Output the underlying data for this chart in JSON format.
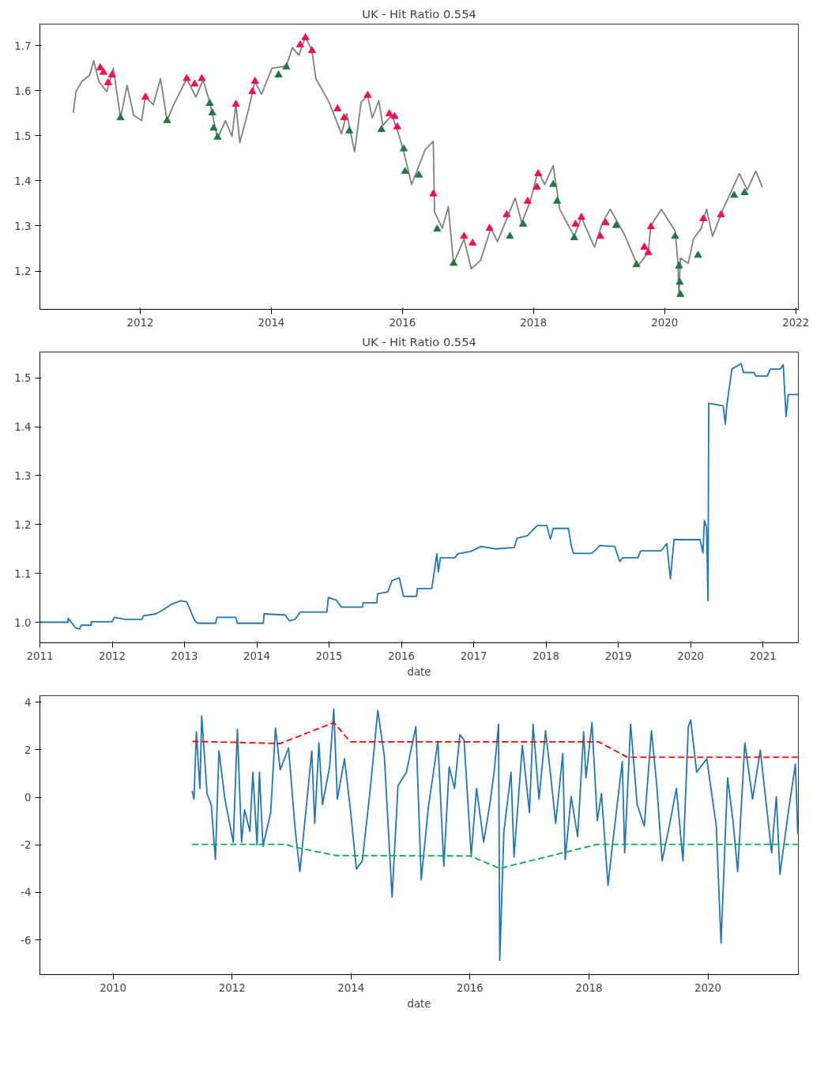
{
  "chart_data": [
    {
      "type": "line",
      "title": "UK - Hit Ratio 0.554",
      "xlim": [
        2010.47,
        2022.04
      ],
      "ylim": [
        1.115,
        1.748
      ],
      "xticks": [
        2012,
        2014,
        2016,
        2018,
        2020,
        2022
      ],
      "yticks": [
        {
          "value": 1.2,
          "label": "1.2"
        },
        {
          "value": 1.3,
          "label": "1.3"
        },
        {
          "value": 1.4,
          "label": "1.4"
        },
        {
          "value": 1.5,
          "label": "1.5"
        },
        {
          "value": 1.6,
          "label": "1.6"
        },
        {
          "value": 1.7,
          "label": "1.7"
        }
      ],
      "series": [
        {
          "color": "#808080",
          "x": [
            2010.98,
            2011.02,
            2011.11,
            2011.23,
            2011.29,
            2011.37,
            2011.49,
            2011.59,
            2011.7,
            2011.8,
            2011.9,
            2012.02,
            2012.08,
            2012.2,
            2012.31,
            2012.41,
            2012.51,
            2012.71,
            2012.85,
            2012.96,
            2013.06,
            2013.18,
            2013.3,
            2013.4,
            2013.46,
            2013.52,
            2013.65,
            2013.75,
            2013.85,
            2014.01,
            2014.23,
            2014.32,
            2014.42,
            2014.52,
            2014.62,
            2014.68,
            2014.88,
            2015.07,
            2015.15,
            2015.27,
            2015.37,
            2015.47,
            2015.54,
            2015.64,
            2015.7,
            2015.84,
            2015.94,
            2016.02,
            2016.14,
            2016.35,
            2016.47,
            2016.48,
            2016.49,
            2016.61,
            2016.7,
            2016.78,
            2016.94,
            2017.05,
            2017.19,
            2017.35,
            2017.45,
            2017.6,
            2017.72,
            2017.82,
            2017.95,
            2018.07,
            2018.17,
            2018.3,
            2018.4,
            2018.62,
            2018.73,
            2018.93,
            2019.05,
            2019.17,
            2019.38,
            2019.59,
            2019.75,
            2019.79,
            2019.95,
            2020.16,
            2020.2,
            2020.22,
            2020.24,
            2020.36,
            2020.44,
            2020.56,
            2020.64,
            2020.73,
            2020.89,
            2021.14,
            2021.26,
            2021.39,
            2021.49
          ],
          "values": [
            1.551,
            1.598,
            1.621,
            1.635,
            1.667,
            1.621,
            1.598,
            1.65,
            1.54,
            1.612,
            1.546,
            1.534,
            1.586,
            1.569,
            1.627,
            1.534,
            1.569,
            1.627,
            1.586,
            1.624,
            1.575,
            1.494,
            1.534,
            1.499,
            1.569,
            1.485,
            1.557,
            1.621,
            1.592,
            1.65,
            1.655,
            1.696,
            1.679,
            1.719,
            1.69,
            1.627,
            1.575,
            1.505,
            1.549,
            1.465,
            1.575,
            1.589,
            1.54,
            1.578,
            1.523,
            1.546,
            1.505,
            1.465,
            1.392,
            1.47,
            1.488,
            1.416,
            1.331,
            1.295,
            1.343,
            1.217,
            1.271,
            1.205,
            1.223,
            1.295,
            1.265,
            1.319,
            1.362,
            1.307,
            1.355,
            1.422,
            1.392,
            1.434,
            1.337,
            1.277,
            1.319,
            1.253,
            1.307,
            1.337,
            1.283,
            1.211,
            1.241,
            1.301,
            1.337,
            1.289,
            1.223,
            1.145,
            1.229,
            1.217,
            1.271,
            1.295,
            1.337,
            1.277,
            1.337,
            1.416,
            1.38,
            1.422,
            1.386
          ]
        },
        {
          "type": "scatter",
          "marker": "triangle",
          "color": "#ff0a50",
          "x": [
            2011.39,
            2011.44,
            2011.51,
            2011.57,
            2012.08,
            2012.71,
            2012.83,
            2012.94,
            2013.46,
            2013.71,
            2013.75,
            2014.44,
            2014.52,
            2014.62,
            2015.01,
            2015.11,
            2015.47,
            2015.8,
            2015.88,
            2015.92,
            2016.47,
            2016.94,
            2017.07,
            2017.33,
            2017.59,
            2017.91,
            2018.05,
            2018.07,
            2018.64,
            2018.73,
            2019.02,
            2019.1,
            2019.69,
            2019.75,
            2019.79,
            2020.59,
            2020.86
          ],
          "values": [
            1.651,
            1.641,
            1.618,
            1.635,
            1.586,
            1.627,
            1.615,
            1.627,
            1.57,
            1.598,
            1.621,
            1.702,
            1.718,
            1.689,
            1.56,
            1.54,
            1.59,
            1.549,
            1.543,
            1.52,
            1.371,
            1.277,
            1.262,
            1.295,
            1.325,
            1.355,
            1.386,
            1.416,
            1.304,
            1.319,
            1.277,
            1.307,
            1.253,
            1.241,
            1.298,
            1.316,
            1.325
          ]
        },
        {
          "type": "scatter",
          "marker": "triangle",
          "color": "#1e7b3c",
          "x": [
            2011.7,
            2012.41,
            2013.06,
            2013.1,
            2013.12,
            2013.18,
            2014.11,
            2014.23,
            2015.19,
            2015.68,
            2016.02,
            2016.04,
            2016.25,
            2016.53,
            2016.78,
            2017.64,
            2017.84,
            2018.3,
            2018.36,
            2018.62,
            2019.26,
            2019.57,
            2020.16,
            2020.22,
            2020.23,
            2020.24,
            2020.51,
            2021.06,
            2021.22
          ],
          "values": [
            1.54,
            1.534,
            1.572,
            1.551,
            1.517,
            1.497,
            1.635,
            1.653,
            1.511,
            1.514,
            1.471,
            1.421,
            1.413,
            1.293,
            1.217,
            1.277,
            1.304,
            1.392,
            1.355,
            1.274,
            1.301,
            1.214,
            1.277,
            1.211,
            1.175,
            1.148,
            1.235,
            1.368,
            1.374
          ]
        }
      ]
    },
    {
      "type": "line",
      "title": "UK - Hit Ratio 0.554",
      "xlabel": "date",
      "xlim": [
        2011.0,
        2021.49
      ],
      "ylim": [
        0.958,
        1.553
      ],
      "xticks": [
        2011,
        2012,
        2013,
        2014,
        2015,
        2016,
        2017,
        2018,
        2019,
        2020,
        2021
      ],
      "yticks": [
        {
          "value": 1.0,
          "label": "1.0"
        },
        {
          "value": 1.1,
          "label": "1.1"
        },
        {
          "value": 1.2,
          "label": "1.2"
        },
        {
          "value": 1.3,
          "label": "1.3"
        },
        {
          "value": 1.4,
          "label": "1.4"
        },
        {
          "value": 1.5,
          "label": "1.5"
        }
      ],
      "series": [
        {
          "color": "#1f77b4",
          "x": [
            2011.0,
            2011.39,
            2011.39,
            2011.5,
            2011.55,
            2011.57,
            2011.71,
            2011.71,
            2012.0,
            2012.03,
            2012.18,
            2012.41,
            2012.43,
            2012.6,
            2012.71,
            2012.82,
            2012.95,
            2013.03,
            2013.14,
            2013.18,
            2013.43,
            2013.45,
            2013.71,
            2013.73,
            2014.09,
            2014.1,
            2014.39,
            2014.45,
            2014.53,
            2014.6,
            2014.97,
            2014.99,
            2015.1,
            2015.17,
            2015.46,
            2015.47,
            2015.66,
            2015.67,
            2015.81,
            2015.87,
            2015.97,
            2016.03,
            2016.21,
            2016.22,
            2016.42,
            2016.46,
            2016.49,
            2016.51,
            2016.54,
            2016.74,
            2016.78,
            2016.96,
            2017.1,
            2017.31,
            2017.56,
            2017.6,
            2017.74,
            2017.81,
            2017.88,
            2018.01,
            2018.06,
            2018.1,
            2018.31,
            2018.35,
            2018.38,
            2018.63,
            2018.7,
            2018.74,
            2018.95,
            2019.02,
            2019.06,
            2019.27,
            2019.31,
            2019.59,
            2019.67,
            2019.72,
            2019.77,
            2020.13,
            2020.17,
            2020.19,
            2020.22,
            2020.24,
            2020.25,
            2020.45,
            2020.48,
            2020.5,
            2020.57,
            2020.7,
            2020.73,
            2020.88,
            2020.9,
            2021.06,
            2021.1,
            2021.24,
            2021.28,
            2021.32,
            2021.35,
            2021.49
          ],
          "values": [
            1.0,
            1.0,
            1.008,
            0.988,
            0.986,
            0.994,
            0.994,
            1.001,
            1.001,
            1.01,
            1.006,
            1.006,
            1.013,
            1.017,
            1.026,
            1.037,
            1.044,
            1.042,
            1.004,
            0.998,
            0.998,
            1.01,
            1.01,
            0.998,
            0.998,
            1.017,
            1.015,
            1.003,
            1.006,
            1.021,
            1.021,
            1.051,
            1.045,
            1.031,
            1.031,
            1.04,
            1.04,
            1.058,
            1.062,
            1.085,
            1.091,
            1.053,
            1.053,
            1.069,
            1.069,
            1.109,
            1.14,
            1.103,
            1.132,
            1.132,
            1.14,
            1.145,
            1.155,
            1.15,
            1.153,
            1.172,
            1.177,
            1.188,
            1.198,
            1.198,
            1.17,
            1.192,
            1.192,
            1.156,
            1.141,
            1.141,
            1.15,
            1.157,
            1.155,
            1.124,
            1.132,
            1.132,
            1.146,
            1.146,
            1.161,
            1.089,
            1.169,
            1.169,
            1.142,
            1.208,
            1.194,
            1.044,
            1.448,
            1.443,
            1.405,
            1.443,
            1.518,
            1.529,
            1.511,
            1.511,
            1.504,
            1.504,
            1.518,
            1.518,
            1.527,
            1.421,
            1.466,
            1.466
          ]
        }
      ]
    },
    {
      "type": "line",
      "xlabel": "date",
      "xlim": [
        2008.77,
        2021.52
      ],
      "ylim": [
        -7.46,
        4.27
      ],
      "xticks": [
        2010,
        2012,
        2014,
        2016,
        2018,
        2020
      ],
      "yticks": [
        -6,
        -4,
        -2,
        0,
        2,
        4
      ],
      "series": [
        {
          "color": "#1f77b4",
          "x": [
            2011.33,
            2011.36,
            2011.4,
            2011.43,
            2011.46,
            2011.49,
            2011.54,
            2011.58,
            2011.65,
            2011.72,
            2011.78,
            2011.88,
            2012.02,
            2012.09,
            2012.16,
            2012.21,
            2012.3,
            2012.35,
            2012.42,
            2012.46,
            2012.52,
            2012.65,
            2012.73,
            2012.81,
            2012.95,
            2013.06,
            2013.14,
            2013.27,
            2013.34,
            2013.39,
            2013.46,
            2013.52,
            2013.64,
            2013.71,
            2013.77,
            2013.89,
            2013.99,
            2014.09,
            2014.19,
            2014.33,
            2014.45,
            2014.56,
            2014.69,
            2014.79,
            2014.93,
            2015.09,
            2015.18,
            2015.3,
            2015.46,
            2015.56,
            2015.65,
            2015.74,
            2015.83,
            2015.9,
            2016.02,
            2016.11,
            2016.23,
            2016.34,
            2016.41,
            2016.48,
            2016.5,
            2016.57,
            2016.69,
            2016.74,
            2016.88,
            2017.0,
            2017.06,
            2017.16,
            2017.27,
            2017.35,
            2017.44,
            2017.56,
            2017.6,
            2017.7,
            2017.81,
            2017.91,
            2017.95,
            2018.05,
            2018.14,
            2018.21,
            2018.32,
            2018.4,
            2018.56,
            2018.6,
            2018.7,
            2018.81,
            2018.93,
            2019.05,
            2019.14,
            2019.23,
            2019.35,
            2019.47,
            2019.58,
            2019.67,
            2019.71,
            2019.81,
            2019.98,
            2020.14,
            2020.22,
            2020.33,
            2020.42,
            2020.5,
            2020.62,
            2020.75,
            2020.88,
            2021.07,
            2021.15,
            2021.21,
            2021.35,
            2021.47,
            2021.51
          ],
          "values": [
            0.26,
            -0.08,
            2.75,
            1.5,
            0.37,
            3.42,
            1.62,
            0.15,
            -0.31,
            -2.62,
            1.95,
            -0.08,
            -1.89,
            2.86,
            -1.89,
            -0.53,
            -1.44,
            1.05,
            -2.0,
            1.05,
            -2.06,
            -0.64,
            2.91,
            1.16,
            2.07,
            -1.32,
            -3.13,
            0.15,
            1.95,
            -1.1,
            2.29,
            -0.31,
            1.28,
            3.71,
            -0.08,
            1.62,
            -0.53,
            -3.02,
            -2.68,
            0.49,
            3.65,
            1.73,
            -4.2,
            0.49,
            1.05,
            2.97,
            -3.47,
            -0.42,
            2.35,
            -2.9,
            1.28,
            0.37,
            2.63,
            2.41,
            -2.45,
            0.37,
            -1.89,
            -0.19,
            1.16,
            3.08,
            -6.86,
            -1.44,
            1.05,
            -2.51,
            2.18,
            -0.64,
            3.08,
            -0.08,
            2.8,
            1.05,
            -1.1,
            1.84,
            -2.62,
            0.03,
            -1.66,
            2.75,
            0.82,
            3.14,
            -0.98,
            0.15,
            -3.7,
            -1.89,
            1.5,
            -2.34,
            3.08,
            -0.31,
            -1.21,
            2.8,
            0.49,
            -2.68,
            -1.21,
            0.37,
            -2.68,
            2.97,
            3.25,
            1.05,
            1.62,
            -1.21,
            -6.13,
            0.82,
            -0.98,
            -3.13,
            2.29,
            -0.08,
            1.98,
            -2.34,
            0.03,
            -3.24,
            -0.64,
            1.39,
            -1.55
          ]
        },
        {
          "color": "#ff0000",
          "line_style": "dashed",
          "x": [
            2011.33,
            2012.81,
            2013.71,
            2013.99,
            2018.16,
            2018.65,
            2021.51
          ],
          "values": [
            2.35,
            2.26,
            3.14,
            2.33,
            2.33,
            1.68,
            1.68
          ]
        },
        {
          "color": "#00b050",
          "line_style": "dashed",
          "x": [
            2011.33,
            2012.9,
            2013.04,
            2013.74,
            2016.0,
            2016.5,
            2018.14,
            2021.51
          ],
          "values": [
            -1.98,
            -1.98,
            -2.09,
            -2.45,
            -2.47,
            -2.99,
            -1.98,
            -1.98
          ]
        }
      ]
    }
  ]
}
